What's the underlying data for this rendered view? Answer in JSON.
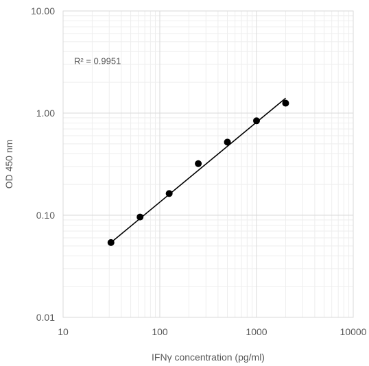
{
  "chart_data": {
    "type": "scatter",
    "title": "",
    "xlabel": "IFNγ concentration (pg/ml)",
    "ylabel": "OD 450 nm",
    "x_scale": "log",
    "y_scale": "log",
    "xlim": [
      10,
      10000
    ],
    "ylim": [
      0.01,
      10
    ],
    "x_ticks": [
      "10",
      "100",
      "1000",
      "10000"
    ],
    "y_ticks": [
      "0.01",
      "0.10",
      "1.00",
      "10.00"
    ],
    "grid": "major and minor",
    "legend": "none",
    "annotation": "R² = 0.9951",
    "series": [
      {
        "x": [
          31.25,
          62.5,
          125,
          250,
          500,
          1000,
          2000
        ],
        "y": [
          0.054,
          0.096,
          0.163,
          0.32,
          0.52,
          0.84,
          1.25
        ]
      }
    ],
    "trendline": {
      "type": "power",
      "x_range": [
        31.25,
        2000
      ],
      "y_range": [
        0.054,
        1.4
      ]
    },
    "colors": {
      "points": "#000000",
      "trendline": "#000000",
      "grid": "#d9d9d9"
    }
  }
}
